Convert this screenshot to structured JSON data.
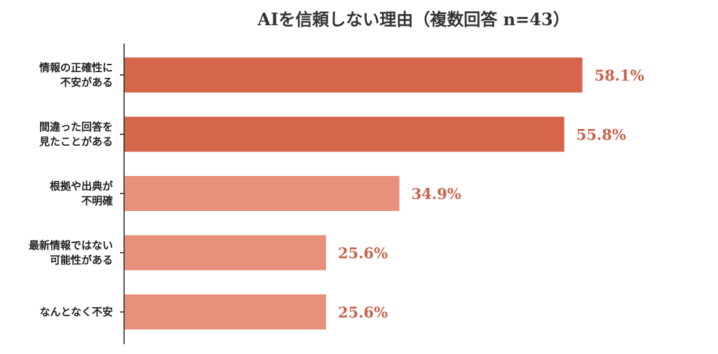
{
  "chart_data": {
    "type": "bar",
    "orientation": "horizontal",
    "title": "AIを信頼しない理由（複数回答 n=43）",
    "categories": [
      [
        "情報の正確性に",
        "不安がある"
      ],
      [
        "間違った回答を",
        "見たことがある"
      ],
      [
        "根拠や出典が",
        "不明確"
      ],
      [
        "最新情報ではない",
        "可能性がある"
      ],
      [
        "なんとなく不安"
      ]
    ],
    "values": [
      58.1,
      55.8,
      34.9,
      25.6,
      25.6
    ],
    "value_labels": [
      "58.1%",
      "55.8%",
      "34.9%",
      "25.6%",
      "25.6%"
    ],
    "xlim": [
      0,
      100
    ],
    "grid": false,
    "legend": "none",
    "colors": {
      "highlight_bar": "#d5664c",
      "normal_bar": "#e8917a",
      "value_label": "#c9634b",
      "axis": "#222222",
      "title": "#333333"
    },
    "highlight": [
      true,
      true,
      false,
      false,
      false
    ]
  }
}
